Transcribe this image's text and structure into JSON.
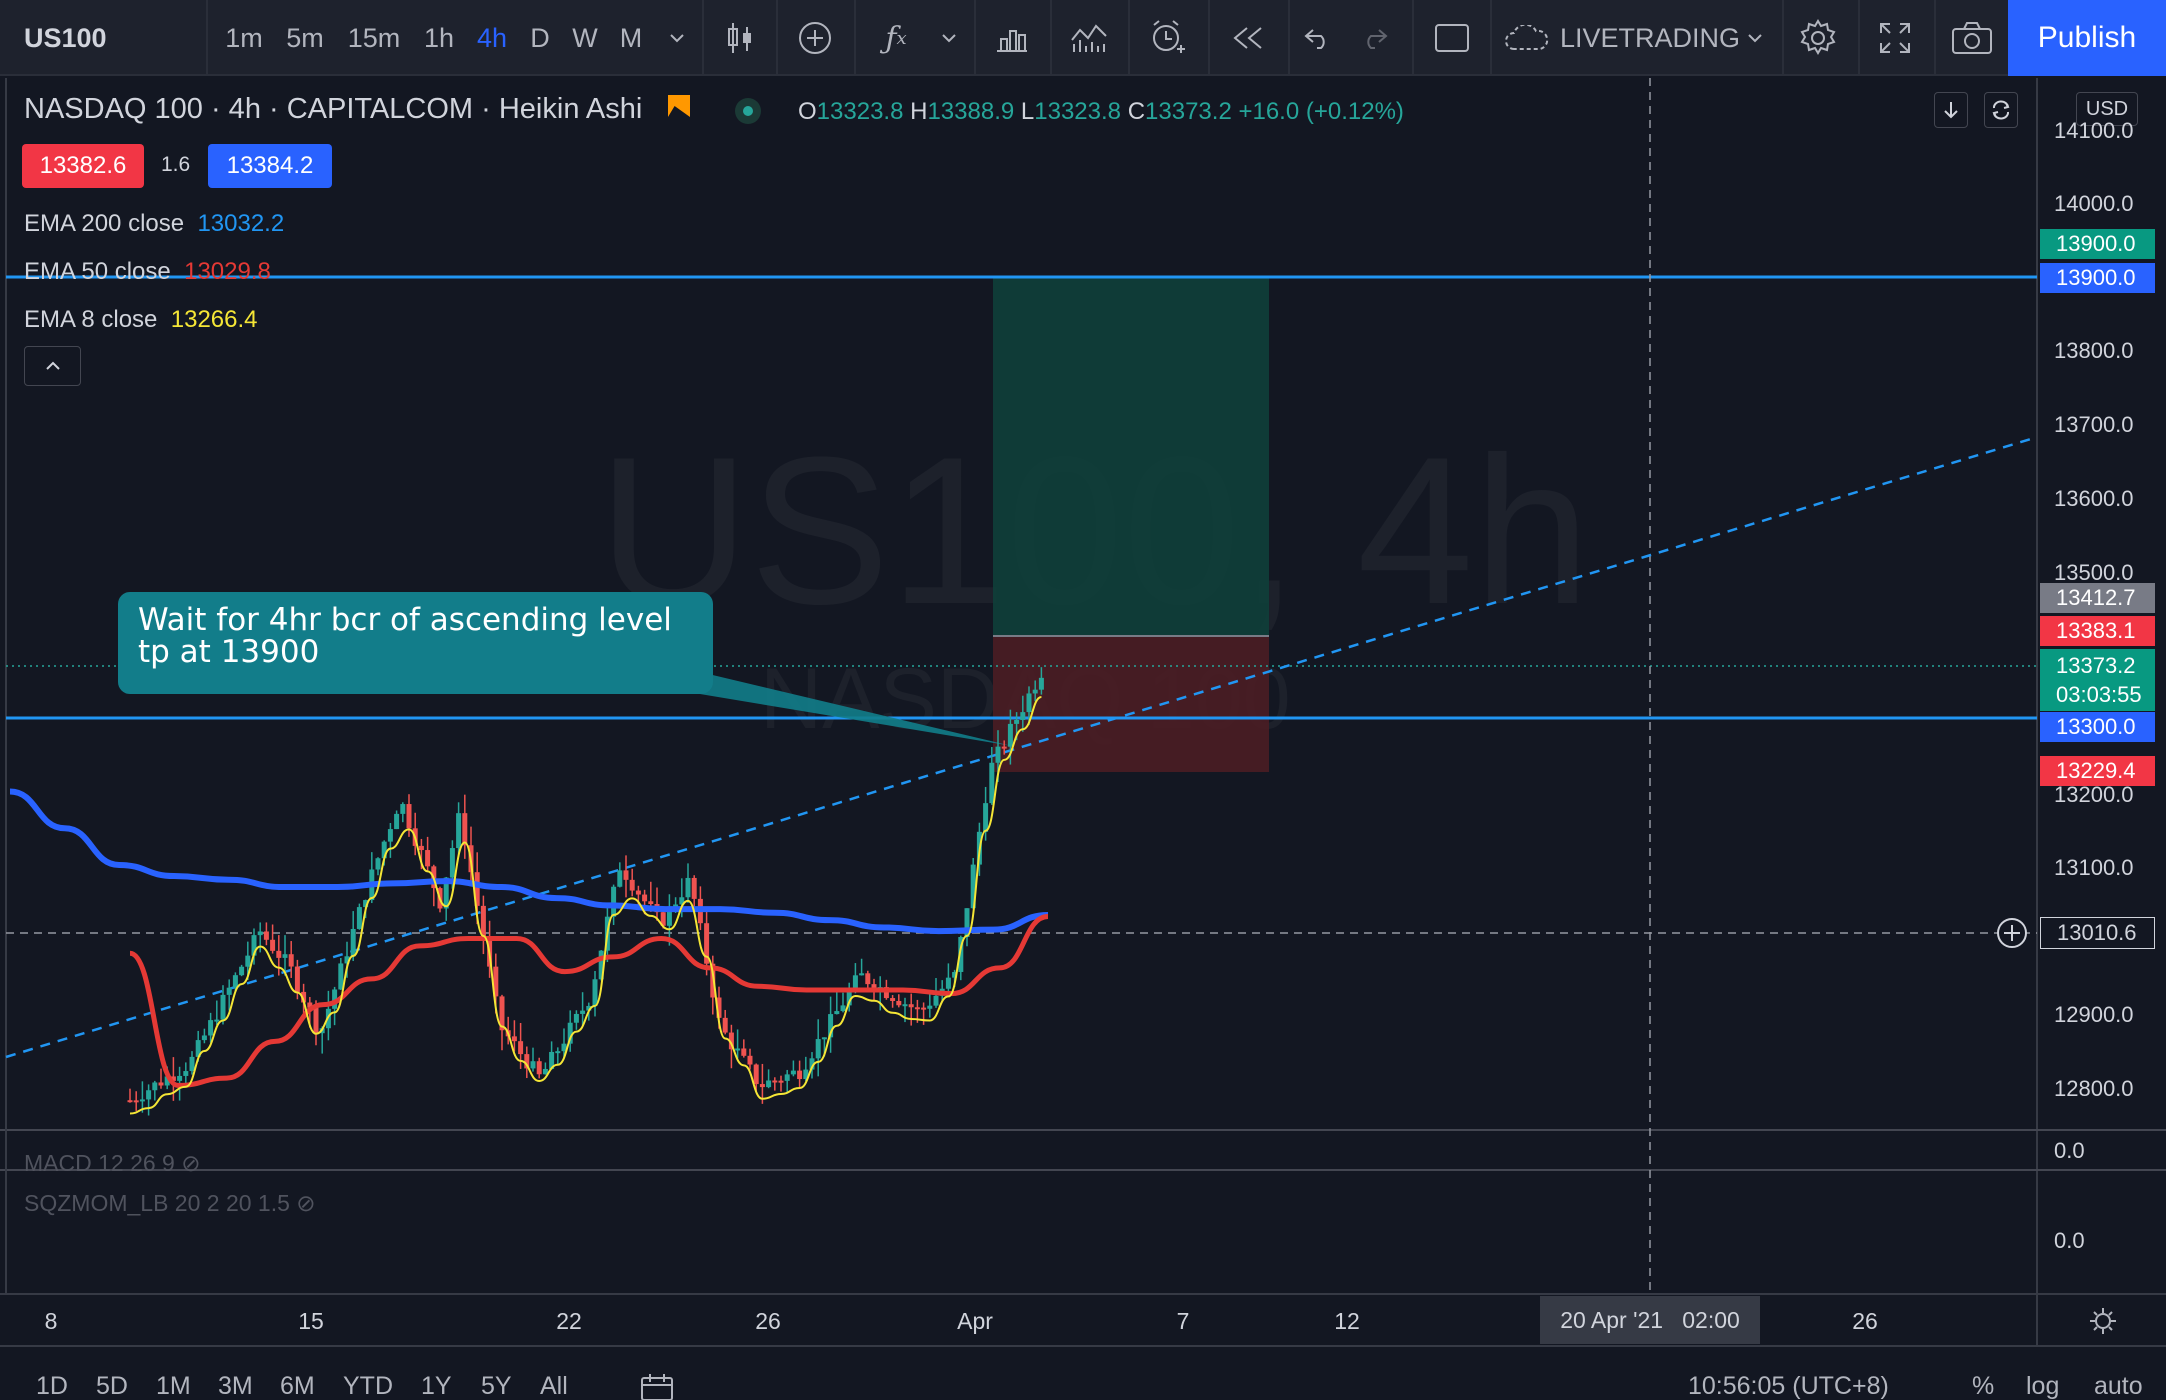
{
  "toolbar": {
    "symbol": "US100",
    "timeframes": [
      "1m",
      "5m",
      "15m",
      "1h",
      "4h",
      "D",
      "W",
      "M"
    ],
    "active_timeframe": "4h",
    "layout_name": "LIVETRADING",
    "publish_label": "Publish"
  },
  "legend": {
    "title": "NASDAQ 100 · 4h · CAPITALCOM · Heikin Ashi",
    "ohlc": {
      "o_label": "O",
      "o": "13323.8",
      "h_label": "H",
      "h": "13388.9",
      "l_label": "L",
      "l": "13323.8",
      "c_label": "C",
      "c": "13373.2",
      "change": "+16.0 (+0.12%)"
    },
    "bid": "13382.6",
    "spread": "1.6",
    "ask": "13384.2",
    "indicators": [
      {
        "name": "EMA 200 close",
        "value": "13032.2",
        "color": "#2962ff"
      },
      {
        "name": "EMA 50 close",
        "value": "13029.8",
        "color": "#e53935"
      },
      {
        "name": "EMA 8 close",
        "value": "13266.4",
        "color": "#f5e636"
      }
    ]
  },
  "watermark": {
    "symbol_tf": "US100, 4h",
    "name": "NASDAQ 100"
  },
  "annotation": {
    "line1": "Wait for 4hr bcr of ascending level",
    "line2": "tp at 13900"
  },
  "price_axis": {
    "currency": "USD",
    "labels": [
      "14100.0",
      "14000.0",
      "13900.0",
      "13800.0",
      "13700.0",
      "13600.0",
      "13500.0",
      "13200.0",
      "13100.0",
      "12900.0",
      "12800.0"
    ],
    "tags": [
      {
        "value": "13900.0",
        "color": "#089981"
      },
      {
        "value": "13900.0",
        "color": "#2962ff"
      },
      {
        "value": "13412.7",
        "color": "#787b86"
      },
      {
        "value": "13383.1",
        "color": "#f23645"
      },
      {
        "value": "13373.2",
        "color": "#089981",
        "countdown": "03:03:55"
      },
      {
        "value": "13300.0",
        "color": "#2962ff"
      },
      {
        "value": "13229.4",
        "color": "#f23645"
      },
      {
        "value": "13010.6",
        "color": "#131722"
      }
    ]
  },
  "panes": [
    {
      "name": "MACD 12 26 9",
      "axis_value": "0.0"
    },
    {
      "name": "SQZMOM_LB 20 2 20 1.5",
      "axis_value": "0.0"
    }
  ],
  "time_axis": {
    "labels": [
      "8",
      "15",
      "22",
      "26",
      "Apr",
      "7",
      "12",
      "26"
    ],
    "crosshair_label": "20 Apr '21   02:00"
  },
  "bottom": {
    "ranges": [
      "1D",
      "5D",
      "1M",
      "3M",
      "6M",
      "YTD",
      "1Y",
      "5Y",
      "All"
    ],
    "clock": "10:56:05 (UTC+8)",
    "percent_label": "%",
    "log_label": "log",
    "auto_label": "auto"
  },
  "colors": {
    "background": "#131722",
    "up": "#26a69a",
    "down": "#ef5350",
    "accent": "#2962ff"
  },
  "chart_data": {
    "type": "candlestick",
    "style": "Heikin Ashi",
    "symbol": "NASDAQ 100",
    "interval": "4h",
    "ylim": [
      12760,
      14120
    ],
    "x_labels": [
      "8",
      "15",
      "22",
      "26",
      "Apr",
      "7",
      "12",
      "20 Apr '21",
      "26"
    ],
    "last_close": 13373.2,
    "horizontal_lines": [
      13900,
      13300
    ],
    "crosshair_price": 13010.6,
    "long_position": {
      "entry": 13383.1,
      "target": 13900,
      "stop": 13229.4
    },
    "trendline": {
      "type": "dashed ascending",
      "from_price": 12840,
      "to_price": 13690
    },
    "ema_200": [
      13200,
      13150,
      13100,
      13085,
      13080,
      13070,
      13070,
      13075,
      13078,
      13070,
      13055,
      13045,
      13040,
      13040,
      13035,
      13025,
      13015,
      13010,
      13012,
      13032
    ],
    "ema_50": [
      12980,
      12800,
      12810,
      12860,
      12910,
      12945,
      12990,
      13000,
      13000,
      12955,
      12975,
      13000,
      12960,
      12935,
      12930,
      12930,
      12930,
      12925,
      12960,
      13030
    ],
    "ema_8_last": 13266.4
  }
}
